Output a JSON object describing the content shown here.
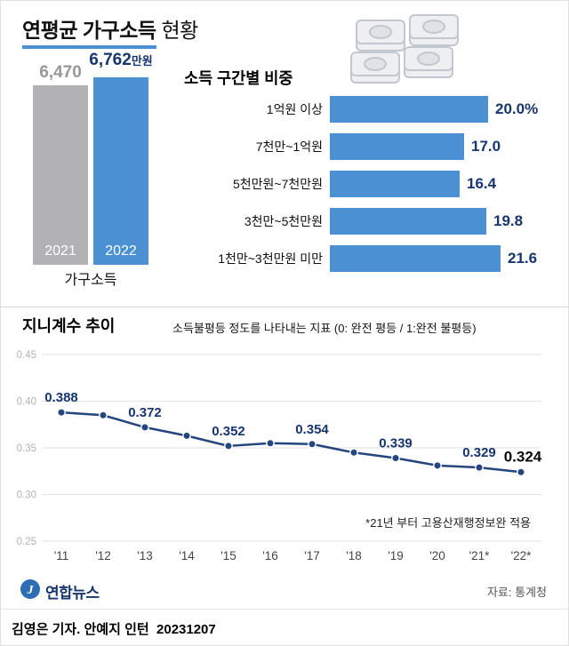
{
  "header": {
    "title_highlight": "연평균 가구소득",
    "title_rest": "현황"
  },
  "colors": {
    "accent_blue": "#4a90d2",
    "navy": "#17356e",
    "gray_bar": "#b2b2b4",
    "gray_text": "#97979b",
    "line": "#24457e"
  },
  "icons": {
    "money": "banknote-stacks",
    "logo": "yonhap-circle"
  },
  "chart_data": [
    {
      "type": "bar",
      "title": "가구소득",
      "categories": [
        "2021",
        "2022"
      ],
      "values": [
        6470,
        6762
      ],
      "value_labels": [
        "6,470",
        "6,762"
      ],
      "unit": "만원",
      "ylim": [
        0,
        6762
      ]
    },
    {
      "type": "bar",
      "orientation": "horizontal",
      "title": "소득 구간별 비중",
      "categories": [
        "1억원 이상",
        "7천만~1억원",
        "5천만원~7천만원",
        "3천만~5천만원",
        "1천만~3천만원 미만"
      ],
      "values": [
        20.0,
        17.0,
        16.4,
        19.8,
        21.6
      ],
      "value_labels": [
        "20.0%",
        "17.0",
        "16.4",
        "19.8",
        "21.6"
      ],
      "xlim": [
        0,
        21.6
      ]
    },
    {
      "type": "line",
      "title": "지니계수 추이",
      "subtitle": "소득불평등 정도를 나타내는 지표 (0: 완전 평등 / 1:완전 불평등)",
      "categories": [
        "'11",
        "'12",
        "'13",
        "'14",
        "'15",
        "'16",
        "'17",
        "'18",
        "'19",
        "'20",
        "'21*",
        "'22*"
      ],
      "values": [
        0.388,
        0.385,
        0.372,
        0.363,
        0.352,
        0.355,
        0.354,
        0.345,
        0.339,
        0.331,
        0.329,
        0.324
      ],
      "point_labels": [
        "0.388",
        "",
        "0.372",
        "",
        "0.352",
        "",
        "0.354",
        "",
        "0.339",
        "",
        "0.329",
        "0.324"
      ],
      "yticks": [
        "0.45",
        "0.40",
        "0.35",
        "0.30",
        "0.25"
      ],
      "ylim": [
        0.25,
        0.45
      ],
      "grid": true,
      "note": "*21년 부터 고용산재행정보완 적용"
    }
  ],
  "footer": {
    "logo_text": "연합뉴스",
    "source": "자료: 통계청"
  },
  "byline": "김영은 기자. 안예지 인턴  20231207"
}
